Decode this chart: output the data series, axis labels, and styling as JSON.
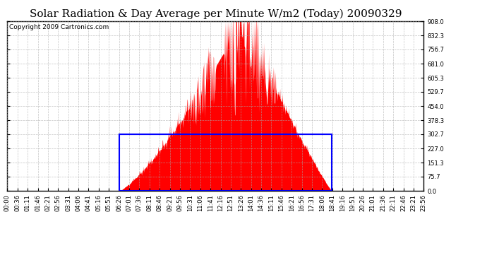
{
  "title": "Solar Radiation & Day Average per Minute W/m2 (Today) 20090329",
  "copyright": "Copyright 2009 Cartronics.com",
  "bg_color": "#ffffff",
  "plot_bg_color": "#ffffff",
  "bar_color": "#ff0000",
  "grid_color": "#aaaaaa",
  "y_ticks": [
    0.0,
    75.7,
    151.3,
    227.0,
    302.7,
    378.3,
    454.0,
    529.7,
    605.3,
    681.0,
    756.7,
    832.3,
    908.0
  ],
  "ylim": [
    0,
    908.0
  ],
  "day_avg": 302.7,
  "x_tick_labels": [
    "00:00",
    "00:36",
    "01:11",
    "01:46",
    "02:21",
    "02:56",
    "03:31",
    "04:06",
    "04:41",
    "05:16",
    "05:51",
    "06:26",
    "07:01",
    "07:36",
    "08:11",
    "08:46",
    "09:21",
    "09:56",
    "10:31",
    "11:06",
    "11:41",
    "12:16",
    "12:51",
    "13:26",
    "14:01",
    "14:36",
    "15:11",
    "15:46",
    "16:21",
    "16:56",
    "17:31",
    "18:06",
    "18:41",
    "19:16",
    "19:51",
    "20:26",
    "21:01",
    "21:36",
    "22:11",
    "22:46",
    "23:21",
    "23:56"
  ],
  "title_fontsize": 11,
  "tick_fontsize": 6,
  "copyright_fontsize": 6.5,
  "box_color": "#0000ff",
  "sunrise_min": 386,
  "sunset_min": 1121,
  "peak_min": 810
}
